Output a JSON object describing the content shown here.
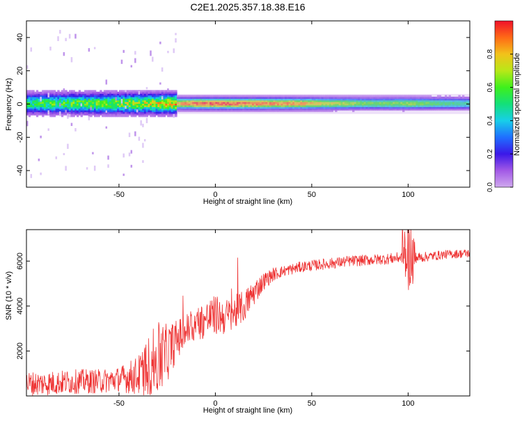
{
  "title": "C2E1.2025.357.18.38.E16",
  "chart_data": [
    {
      "type": "heatmap",
      "title": "",
      "xlabel": "Height of straight line (km)",
      "ylabel": "Frequency (Hz)",
      "xlim": [
        -98,
        132
      ],
      "ylim": [
        -50,
        50
      ],
      "xticks": [
        -50,
        0,
        50,
        100
      ],
      "yticks": [
        -40,
        -20,
        0,
        20,
        40
      ],
      "colorbar": {
        "label": "Normalized spectral amplitude",
        "range": [
          0.0,
          1.0
        ],
        "ticks": [
          0.0,
          0.2,
          0.4,
          0.6,
          0.8
        ],
        "tick_labels": [
          "0.0",
          "0.2",
          "0.4",
          "0.6",
          "0.8"
        ],
        "colormap": [
          "#cfa8ee",
          "#a259e6",
          "#3b18e8",
          "#1f6fff",
          "#17cfe9",
          "#13e07a",
          "#3ef01c",
          "#b8e818",
          "#f2c21a",
          "#ff6a16",
          "#f0112a"
        ]
      },
      "ridge": {
        "center_hz": 0,
        "noisy_below_km": -20,
        "band_halfwidth_hz": {
          "noisy": 6,
          "quiet": 3.5
        },
        "peak_amplitude": [
          {
            "x": -95,
            "v": 0.55
          },
          {
            "x": -80,
            "v": 0.6
          },
          {
            "x": -60,
            "v": 0.65
          },
          {
            "x": -40,
            "v": 0.7
          },
          {
            "x": -22,
            "v": 0.8
          },
          {
            "x": -8,
            "v": 0.95
          },
          {
            "x": 5,
            "v": 0.95
          },
          {
            "x": 20,
            "v": 0.9
          },
          {
            "x": 40,
            "v": 0.85
          },
          {
            "x": 60,
            "v": 0.72
          },
          {
            "x": 80,
            "v": 0.6
          },
          {
            "x": 100,
            "v": 0.65
          },
          {
            "x": 115,
            "v": 0.55
          },
          {
            "x": 132,
            "v": 0.5
          }
        ]
      }
    },
    {
      "type": "line",
      "title": "",
      "xlabel": "Height of straight line (km)",
      "ylabel": "SNR (10 * v/v)",
      "xlim": [
        -98,
        132
      ],
      "ylim": [
        0,
        7400
      ],
      "xticks": [
        -50,
        0,
        50,
        100
      ],
      "yticks": [
        2000,
        4000,
        6000
      ],
      "series": [
        {
          "name": "SNR",
          "color": "#ee3333",
          "x": [
            -98,
            -90,
            -80,
            -70,
            -60,
            -50,
            -40,
            -35,
            -30,
            -25,
            -20,
            -15,
            -10,
            -5,
            0,
            5,
            10,
            15,
            20,
            25,
            30,
            35,
            40,
            45,
            50,
            60,
            70,
            80,
            90,
            95,
            100,
            105,
            110,
            120,
            132
          ],
          "mean": [
            550,
            550,
            600,
            650,
            650,
            750,
            900,
            1300,
            1600,
            1900,
            2500,
            2900,
            3200,
            3400,
            3600,
            3500,
            3700,
            4000,
            4600,
            5100,
            5400,
            5550,
            5650,
            5750,
            5800,
            5900,
            6000,
            6050,
            6100,
            6150,
            6200,
            6150,
            6200,
            6300,
            6350
          ],
          "noise": [
            550,
            550,
            550,
            550,
            550,
            550,
            900,
            1300,
            1700,
            1300,
            900,
            800,
            800,
            850,
            900,
            800,
            800,
            700,
            600,
            400,
            300,
            250,
            250,
            250,
            250,
            250,
            250,
            250,
            250,
            250,
            250,
            250,
            220,
            200,
            200
          ]
        }
      ]
    }
  ]
}
